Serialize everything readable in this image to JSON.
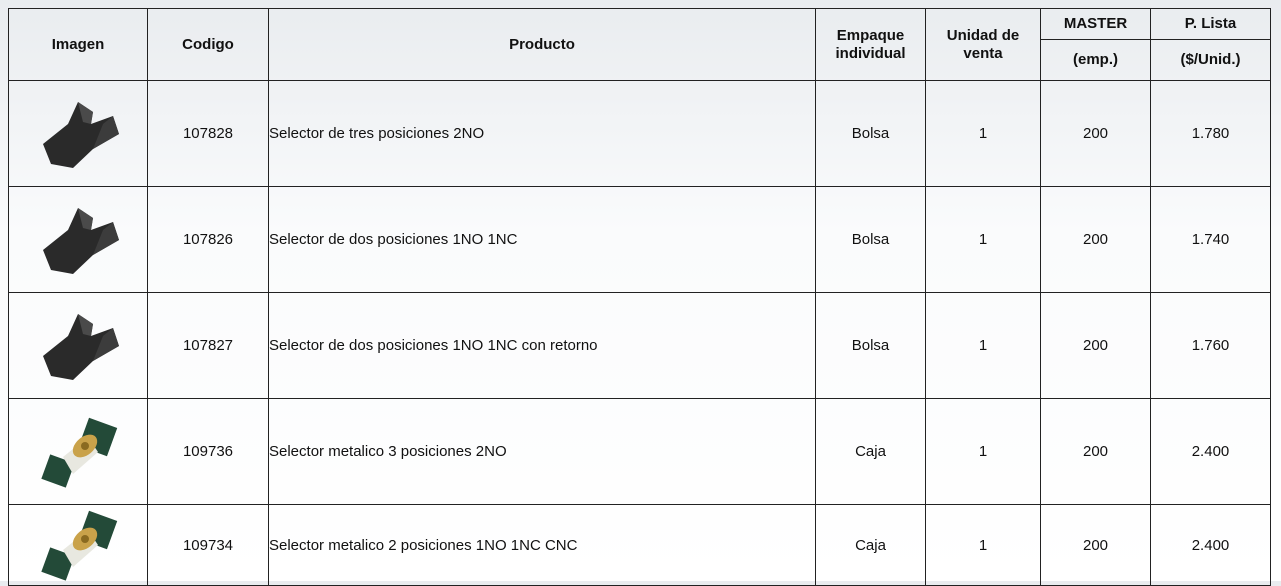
{
  "header": {
    "image": "Imagen",
    "code": "Codigo",
    "product": "Producto",
    "package": "Empaque individual",
    "unit": "Unidad de venta",
    "master": "MASTER",
    "master_unit": "(emp.)",
    "price": "P. Lista",
    "price_unit": "($/Unid.)"
  },
  "table": {
    "rows": [
      {
        "code": "107828",
        "product": "Selector de tres posiciones 2NO",
        "package": "Bolsa",
        "unit": 1,
        "master": 200,
        "price": "1.780"
      },
      {
        "code": "107826",
        "product": "Selector de dos posiciones 1NO 1NC",
        "package": "Bolsa",
        "unit": 1,
        "master": 200,
        "price": "1.740"
      },
      {
        "code": "107827",
        "product": "Selector de dos posiciones 1NO 1NC con retorno",
        "package": "Bolsa",
        "unit": 1,
        "master": 200,
        "price": "1.760"
      },
      {
        "code": "109736",
        "product": "Selector metalico 3 posiciones 2NO",
        "package": "Caja",
        "unit": 1,
        "master": 200,
        "price": "2.400"
      },
      {
        "code": "109734",
        "product": "Selector metalico 2 posiciones 1NO 1NC CNC",
        "package": "Caja",
        "unit": 1,
        "master": 200,
        "price": "2.400"
      }
    ]
  }
}
